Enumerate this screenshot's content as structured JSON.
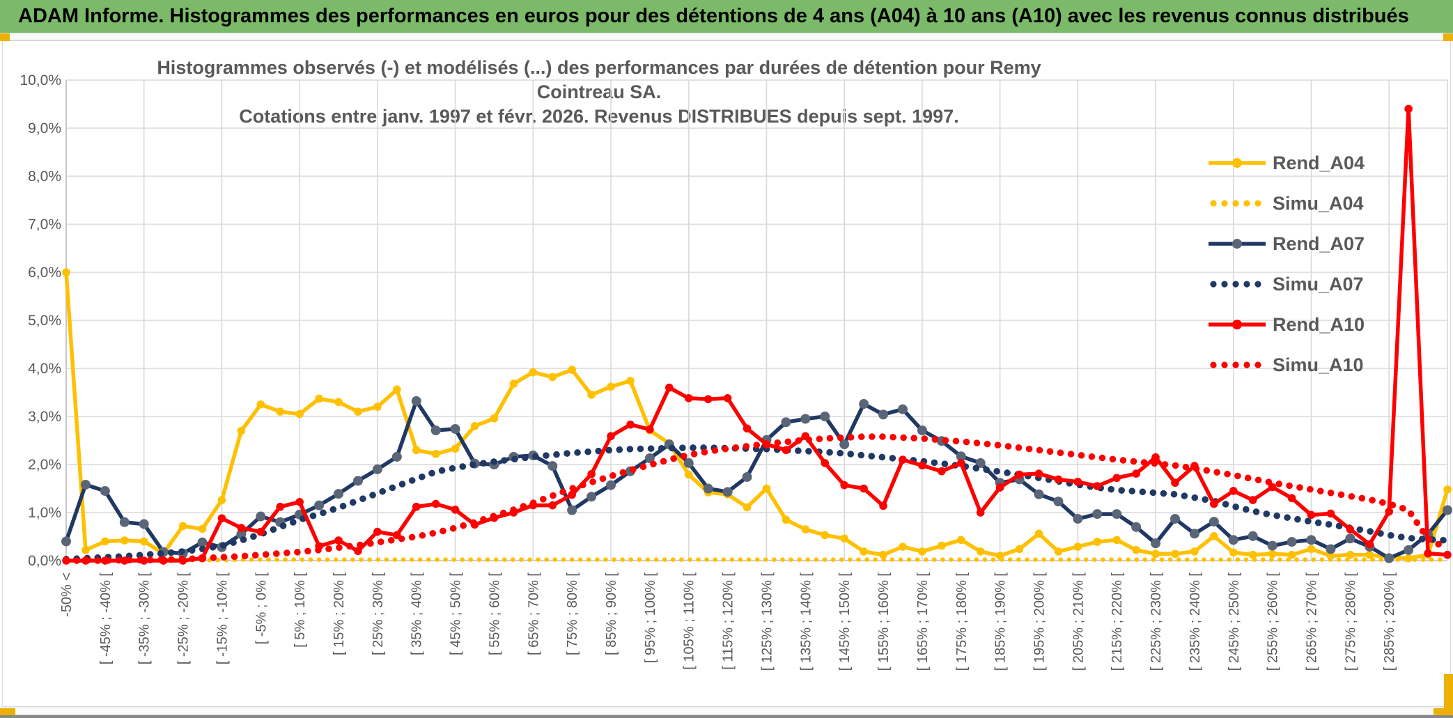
{
  "banner": {
    "title": "ADAM Informe. Histogrammes des performances en euros pour des détentions de 4 ans (A04) à 10 ans (A10) avec les revenus connus distribués"
  },
  "colors": {
    "banner_green": "#7bba69",
    "gold_accent": "#edb106",
    "grid": "#d9d9d9",
    "axis": "#bfbfbf",
    "text_gray": "#595959",
    "series_gold": "#ffc000",
    "series_navy": "#1f3864",
    "series_navy_marker": "#5a6577",
    "series_red": "#fe0000",
    "bottom_bar": "#888888"
  },
  "chart_data": {
    "type": "line",
    "title_line1": "Histogrammes observés (-) et modélisés (...) des performances par durées de détention pour Remy Cointreau SA.",
    "title_line2": "Cotations entre janv. 1997 et févr. 2026. Revenus DISTRIBUES depuis sept. 1997.",
    "grid": true,
    "legend_position": "right-inside",
    "ylim": [
      0,
      10
    ],
    "yticks": [
      "0,0%",
      "1,0%",
      "2,0%",
      "3,0%",
      "4,0%",
      "5,0%",
      "6,0%",
      "7,0%",
      "8,0%",
      "9,0%",
      "10,0%"
    ],
    "categories": [
      "-50% <",
      "",
      "[ -45% ; -40% [",
      "",
      "[ -35% ; -30% [",
      "",
      "[ -25% ; -20% [",
      "",
      "[ -15% ; -10% [",
      "",
      "[ -5% ; 0% [",
      "",
      "[ 5% ; 10% [",
      "",
      "[ 15% ; 20% [",
      "",
      "[ 25% ; 30% [",
      "",
      "[ 35% ; 40% [",
      "",
      "[ 45% ; 50% [",
      "",
      "[ 55% ; 60% [",
      "",
      "[ 65% ; 70% [",
      "",
      "[ 75% ; 80% [",
      "",
      "[ 85% ; 90% [",
      "",
      "[ 95% ; 100% [",
      "",
      "[ 105% ; 110% [",
      "",
      "[ 115% ; 120% [",
      "",
      "[ 125% ; 130% [",
      "",
      "[ 135% ; 140% [",
      "",
      "[ 145% ; 150% [",
      "",
      "[ 155% ; 160% [",
      "",
      "[ 165% ; 170% [",
      "",
      "[ 175% ; 180% [",
      "",
      "[ 185% ; 190% [",
      "",
      "[ 195% ; 200% [",
      "",
      "[ 205% ; 210% [",
      "",
      "[ 215% ; 220% [",
      "",
      "[ 225% ; 230% [",
      "",
      "[ 235% ; 240% [",
      "",
      "[ 245% ; 250% [",
      "",
      "[ 255% ; 260% [",
      "",
      "[ 265% ; 270% [",
      "",
      "[ 275% ; 280% [",
      "",
      "[ 285% ; 290% [",
      "",
      "",
      ""
    ],
    "series": [
      {
        "name": "Rend_A04",
        "style": "solid",
        "color": "#ffc000",
        "marker_color": "#ffc000",
        "values": [
          6.0,
          0.22,
          0.4,
          0.42,
          0.4,
          0.15,
          0.72,
          0.66,
          1.26,
          2.7,
          3.25,
          3.1,
          3.05,
          3.37,
          3.3,
          3.1,
          3.2,
          3.56,
          2.3,
          2.22,
          2.33,
          2.8,
          2.96,
          3.68,
          3.92,
          3.82,
          3.97,
          3.45,
          3.62,
          3.74,
          2.71,
          2.44,
          1.79,
          1.42,
          1.38,
          1.11,
          1.5,
          0.85,
          0.65,
          0.53,
          0.46,
          0.19,
          0.12,
          0.29,
          0.19,
          0.31,
          0.43,
          0.19,
          0.1,
          0.24,
          0.56,
          0.19,
          0.29,
          0.39,
          0.43,
          0.22,
          0.14,
          0.14,
          0.19,
          0.51,
          0.17,
          0.12,
          0.14,
          0.12,
          0.24,
          0.1,
          0.12,
          0.12,
          0.07,
          0.05,
          0.12,
          1.48
        ]
      },
      {
        "name": "Simu_A04",
        "style": "dotted",
        "color": "#ffc000",
        "values": [
          0.01,
          0.01,
          0.01,
          0.01,
          0.01,
          0.01,
          0.01,
          0.01,
          0.01,
          0.02,
          0.02,
          0.02,
          0.02,
          0.02,
          0.02,
          0.02,
          0.02,
          0.02,
          0.02,
          0.02,
          0.02,
          0.02,
          0.02,
          0.02,
          0.02,
          0.02,
          0.02,
          0.02,
          0.02,
          0.02,
          0.02,
          0.02,
          0.02,
          0.02,
          0.02,
          0.02,
          0.02,
          0.02,
          0.02,
          0.02,
          0.02,
          0.02,
          0.02,
          0.02,
          0.02,
          0.02,
          0.02,
          0.02,
          0.02,
          0.02,
          0.02,
          0.02,
          0.02,
          0.02,
          0.02,
          0.02,
          0.02,
          0.02,
          0.02,
          0.02,
          0.02,
          0.02,
          0.02,
          0.02,
          0.02,
          0.02,
          0.02,
          0.02,
          0.02,
          0.02,
          0.02,
          0.02
        ]
      },
      {
        "name": "Rend_A07",
        "style": "solid",
        "color": "#1f3864",
        "marker_color": "#5a6577",
        "values": [
          0.4,
          1.58,
          1.45,
          0.8,
          0.76,
          0.18,
          0.15,
          0.38,
          0.28,
          0.55,
          0.92,
          0.8,
          0.96,
          1.15,
          1.39,
          1.66,
          1.9,
          2.16,
          3.32,
          2.71,
          2.74,
          2.02,
          2.0,
          2.16,
          2.19,
          1.97,
          1.05,
          1.33,
          1.57,
          1.86,
          2.13,
          2.42,
          2.03,
          1.5,
          1.43,
          1.74,
          2.51,
          2.88,
          2.95,
          3.0,
          2.42,
          3.26,
          3.04,
          3.15,
          2.71,
          2.49,
          2.17,
          2.03,
          1.62,
          1.69,
          1.38,
          1.23,
          0.87,
          0.97,
          0.97,
          0.7,
          0.36,
          0.87,
          0.56,
          0.81,
          0.43,
          0.51,
          0.31,
          0.39,
          0.43,
          0.24,
          0.46,
          0.29,
          0.05,
          0.22,
          0.55,
          1.05
        ]
      },
      {
        "name": "Simu_A07",
        "style": "dotted",
        "color": "#1f3864",
        "values": [
          0.03,
          0.05,
          0.07,
          0.09,
          0.12,
          0.15,
          0.19,
          0.24,
          0.31,
          0.42,
          0.55,
          0.7,
          0.85,
          0.97,
          1.1,
          1.25,
          1.4,
          1.55,
          1.7,
          1.85,
          1.93,
          2.0,
          2.06,
          2.11,
          2.16,
          2.2,
          2.24,
          2.27,
          2.3,
          2.32,
          2.33,
          2.34,
          2.35,
          2.35,
          2.34,
          2.33,
          2.32,
          2.3,
          2.28,
          2.26,
          2.23,
          2.19,
          2.15,
          2.11,
          2.07,
          2.02,
          1.97,
          1.91,
          1.85,
          1.79,
          1.72,
          1.65,
          1.58,
          1.52,
          1.47,
          1.44,
          1.41,
          1.38,
          1.31,
          1.24,
          1.13,
          1.03,
          0.95,
          0.88,
          0.81,
          0.75,
          0.68,
          0.61,
          0.53,
          0.47,
          0.44,
          0.42
        ]
      },
      {
        "name": "Rend_A10",
        "style": "solid",
        "color": "#fe0000",
        "marker_color": "#fe0000",
        "values": [
          0,
          0,
          0,
          0,
          0,
          0,
          0,
          0.05,
          0.88,
          0.68,
          0.6,
          1.12,
          1.22,
          0.3,
          0.42,
          0.2,
          0.6,
          0.53,
          1.12,
          1.18,
          1.06,
          0.75,
          0.89,
          1.0,
          1.15,
          1.15,
          1.37,
          1.8,
          2.59,
          2.83,
          2.73,
          3.6,
          3.38,
          3.36,
          3.38,
          2.75,
          2.42,
          2.3,
          2.59,
          2.03,
          1.57,
          1.5,
          1.14,
          2.1,
          1.98,
          1.86,
          2.03,
          1.0,
          1.52,
          1.79,
          1.81,
          1.69,
          1.64,
          1.55,
          1.72,
          1.81,
          2.15,
          1.62,
          1.97,
          1.18,
          1.45,
          1.26,
          1.53,
          1.3,
          0.95,
          0.98,
          0.65,
          0.34,
          1.02,
          9.4,
          0.15,
          0.12
        ]
      },
      {
        "name": "Simu_A10",
        "style": "dotted",
        "color": "#fe0000",
        "values": [
          0.0,
          0.0,
          0.0,
          0.01,
          0.01,
          0.02,
          0.03,
          0.05,
          0.07,
          0.09,
          0.12,
          0.15,
          0.18,
          0.22,
          0.27,
          0.32,
          0.38,
          0.44,
          0.5,
          0.58,
          0.68,
          0.8,
          0.93,
          1.06,
          1.2,
          1.35,
          1.5,
          1.63,
          1.76,
          1.88,
          1.99,
          2.1,
          2.2,
          2.27,
          2.33,
          2.38,
          2.43,
          2.47,
          2.51,
          2.54,
          2.56,
          2.58,
          2.58,
          2.56,
          2.54,
          2.51,
          2.48,
          2.44,
          2.4,
          2.35,
          2.3,
          2.25,
          2.2,
          2.15,
          2.1,
          2.06,
          2.02,
          1.98,
          1.92,
          1.85,
          1.78,
          1.7,
          1.62,
          1.55,
          1.48,
          1.41,
          1.34,
          1.27,
          1.18,
          1.05,
          0.45,
          0.25
        ]
      }
    ]
  }
}
